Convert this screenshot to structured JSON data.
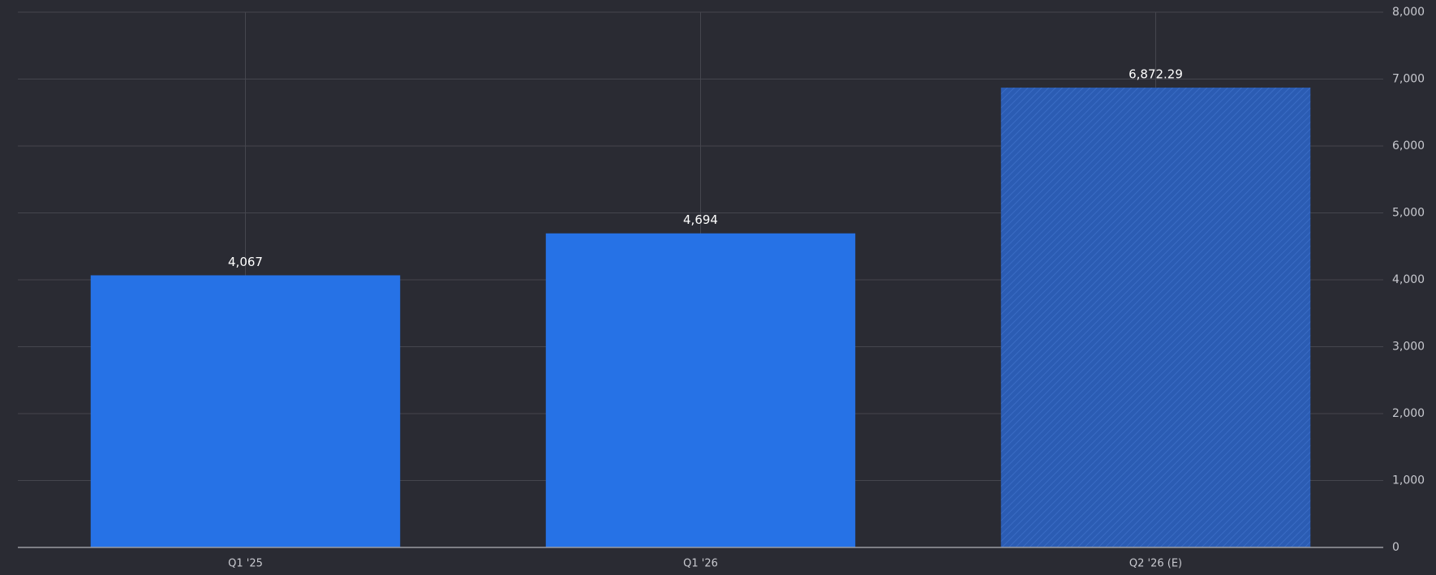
{
  "chart_data": {
    "type": "bar",
    "categories": [
      "Q1 '25",
      "Q1 '26",
      "Q2 '26 (E)"
    ],
    "values": [
      4067,
      4694,
      6872.29
    ],
    "value_labels": [
      "4,067",
      "4,694",
      "6,872.29"
    ],
    "color": "#2672e6",
    "hatched": [
      false,
      false,
      true
    ],
    "ylim": [
      0,
      8000
    ],
    "yticks": [
      0,
      {
        "value": 1000,
        "label": "1,000"
      },
      {
        "value": 2000,
        "label": "2,000"
      },
      {
        "value": 3000,
        "label": "3,000"
      },
      {
        "value": 4000,
        "label": "4,000"
      },
      {
        "value": 5000,
        "label": "5,000"
      },
      {
        "value": 6000,
        "label": "6,000"
      },
      {
        "value": 7000,
        "label": "7,000"
      },
      {
        "value": 8000,
        "label": "8,000"
      }
    ],
    "grid": true
  }
}
